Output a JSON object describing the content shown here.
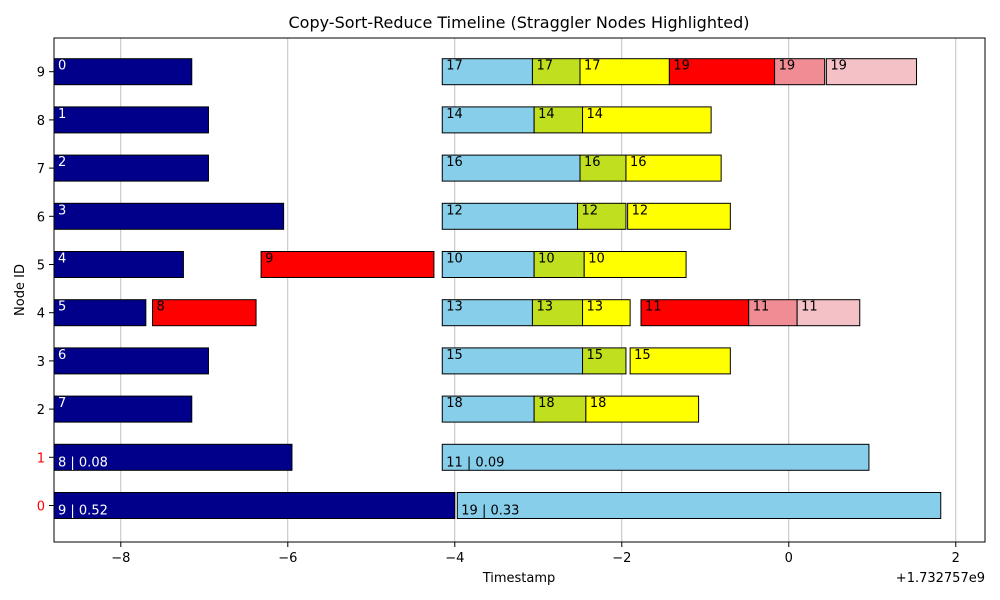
{
  "chart_data": {
    "type": "bar",
    "orientation": "horizontal",
    "title": "Copy-Sort-Reduce Timeline (Straggler Nodes Highlighted)",
    "xlabel": "Timestamp",
    "ylabel": "Node ID",
    "x_offset_label": "+1.732757e9",
    "xlim": [
      -8.8,
      2.35
    ],
    "x_ticks": [
      -8,
      -6,
      -4,
      -2,
      0,
      2
    ],
    "x_tick_labels": [
      "−8",
      "−6",
      "−4",
      "−2",
      "0",
      "2"
    ],
    "y_ticks": [
      0,
      1,
      2,
      3,
      4,
      5,
      6,
      7,
      8,
      9
    ],
    "y_tick_labels": [
      "0",
      "1",
      "2",
      "3",
      "4",
      "5",
      "6",
      "7",
      "8",
      "9"
    ],
    "straggler_nodes": [
      0,
      1
    ],
    "grid": "x",
    "colors": {
      "straggler_tick": "#ff0000",
      "default_tick": "#000000",
      "copy_start": "#00008b",
      "copy": "#87ceeb",
      "sort": "#bfdf1f",
      "reduce": "#ffff00",
      "straggler_task": "#ff0000",
      "straggler_sort": "#f08c94",
      "straggler_reduce": "#f4c2c6"
    },
    "segments": [
      {
        "node": 9,
        "start": -8.8,
        "end": -7.15,
        "label": "0",
        "kind": "copy_start"
      },
      {
        "node": 8,
        "start": -8.8,
        "end": -6.95,
        "label": "1",
        "kind": "copy_start"
      },
      {
        "node": 7,
        "start": -8.8,
        "end": -6.95,
        "label": "2",
        "kind": "copy_start"
      },
      {
        "node": 6,
        "start": -8.8,
        "end": -6.05,
        "label": "3",
        "kind": "copy_start"
      },
      {
        "node": 5,
        "start": -8.8,
        "end": -7.25,
        "label": "4",
        "kind": "copy_start"
      },
      {
        "node": 4,
        "start": -8.8,
        "end": -7.7,
        "label": "5",
        "kind": "copy_start"
      },
      {
        "node": 3,
        "start": -8.8,
        "end": -6.95,
        "label": "6",
        "kind": "copy_start"
      },
      {
        "node": 2,
        "start": -8.8,
        "end": -7.15,
        "label": "7",
        "kind": "copy_start"
      },
      {
        "node": 1,
        "start": -8.8,
        "end": -5.95,
        "label": "8 | 0.08",
        "kind": "copy_start"
      },
      {
        "node": 0,
        "start": -8.8,
        "end": -4.0,
        "label": "9 | 0.52",
        "kind": "copy_start"
      },
      {
        "node": 5,
        "start": -6.32,
        "end": -4.25,
        "label": "9",
        "kind": "straggler_task"
      },
      {
        "node": 4,
        "start": -7.62,
        "end": -6.38,
        "label": "8",
        "kind": "straggler_task"
      },
      {
        "node": 9,
        "start": -4.15,
        "end": -3.07,
        "label": "17",
        "kind": "copy"
      },
      {
        "node": 9,
        "start": -3.07,
        "end": -2.5,
        "label": "17",
        "kind": "sort"
      },
      {
        "node": 9,
        "start": -2.5,
        "end": -1.43,
        "label": "17",
        "kind": "reduce"
      },
      {
        "node": 9,
        "start": -1.43,
        "end": -0.17,
        "label": "19",
        "kind": "straggler_task"
      },
      {
        "node": 9,
        "start": -0.17,
        "end": 0.43,
        "label": "19",
        "kind": "straggler_sort"
      },
      {
        "node": 9,
        "start": 0.45,
        "end": 1.53,
        "label": "19",
        "kind": "straggler_reduce"
      },
      {
        "node": 8,
        "start": -4.15,
        "end": -3.05,
        "label": "14",
        "kind": "copy"
      },
      {
        "node": 8,
        "start": -3.05,
        "end": -2.47,
        "label": "14",
        "kind": "sort"
      },
      {
        "node": 8,
        "start": -2.47,
        "end": -0.93,
        "label": "14",
        "kind": "reduce"
      },
      {
        "node": 7,
        "start": -4.15,
        "end": -2.5,
        "label": "16",
        "kind": "copy"
      },
      {
        "node": 7,
        "start": -2.5,
        "end": -1.95,
        "label": "16",
        "kind": "sort"
      },
      {
        "node": 7,
        "start": -1.95,
        "end": -0.81,
        "label": "16",
        "kind": "reduce"
      },
      {
        "node": 6,
        "start": -4.15,
        "end": -2.53,
        "label": "12",
        "kind": "copy"
      },
      {
        "node": 6,
        "start": -2.53,
        "end": -1.95,
        "label": "12",
        "kind": "sort"
      },
      {
        "node": 6,
        "start": -1.93,
        "end": -0.7,
        "label": "12",
        "kind": "reduce"
      },
      {
        "node": 5,
        "start": -4.15,
        "end": -3.05,
        "label": "10",
        "kind": "copy"
      },
      {
        "node": 5,
        "start": -3.05,
        "end": -2.45,
        "label": "10",
        "kind": "sort"
      },
      {
        "node": 5,
        "start": -2.45,
        "end": -1.23,
        "label": "10",
        "kind": "reduce"
      },
      {
        "node": 4,
        "start": -4.15,
        "end": -3.07,
        "label": "13",
        "kind": "copy"
      },
      {
        "node": 4,
        "start": -3.07,
        "end": -2.47,
        "label": "13",
        "kind": "sort"
      },
      {
        "node": 4,
        "start": -2.47,
        "end": -1.9,
        "label": "13",
        "kind": "reduce"
      },
      {
        "node": 4,
        "start": -1.77,
        "end": -0.48,
        "label": "11",
        "kind": "straggler_task"
      },
      {
        "node": 4,
        "start": -0.48,
        "end": 0.1,
        "label": "11",
        "kind": "straggler_sort"
      },
      {
        "node": 4,
        "start": 0.1,
        "end": 0.85,
        "label": "11",
        "kind": "straggler_reduce"
      },
      {
        "node": 3,
        "start": -4.15,
        "end": -2.47,
        "label": "15",
        "kind": "copy"
      },
      {
        "node": 3,
        "start": -2.47,
        "end": -1.95,
        "label": "15",
        "kind": "sort"
      },
      {
        "node": 3,
        "start": -1.9,
        "end": -0.7,
        "label": "15",
        "kind": "reduce"
      },
      {
        "node": 2,
        "start": -4.15,
        "end": -3.05,
        "label": "18",
        "kind": "copy"
      },
      {
        "node": 2,
        "start": -3.05,
        "end": -2.43,
        "label": "18",
        "kind": "sort"
      },
      {
        "node": 2,
        "start": -2.43,
        "end": -1.08,
        "label": "18",
        "kind": "reduce"
      },
      {
        "node": 1,
        "start": -4.15,
        "end": 0.96,
        "label": "11 | 0.09",
        "kind": "copy"
      },
      {
        "node": 0,
        "start": -3.97,
        "end": 1.82,
        "label": "19 | 0.33",
        "kind": "copy"
      }
    ]
  }
}
